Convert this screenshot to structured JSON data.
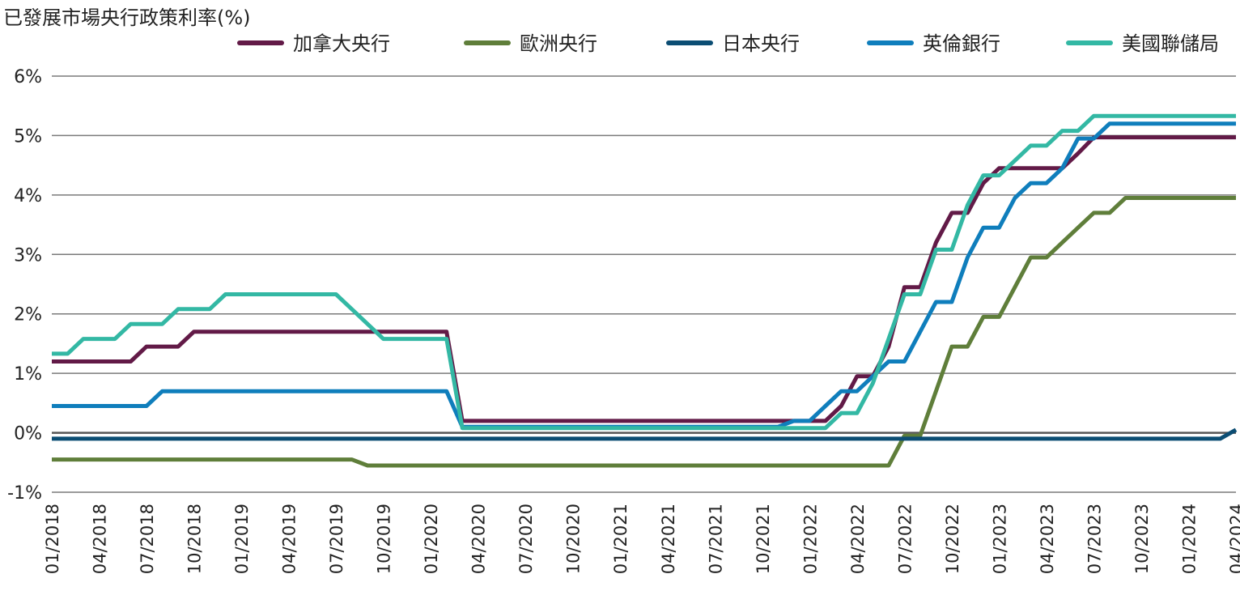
{
  "chart_data": {
    "type": "line",
    "title": "已發展市場央行政策利率(%)",
    "xlabel": "",
    "ylabel": "",
    "ylim": [
      -1,
      6
    ],
    "yticks": [
      -1,
      0,
      1,
      2,
      3,
      4,
      5,
      6
    ],
    "ytick_labels": [
      "-1%",
      "0%",
      "1%",
      "2%",
      "3%",
      "4%",
      "5%",
      "6%"
    ],
    "xlim": [
      "2018-01",
      "2024-04"
    ],
    "x_tick_labels": [
      "01/2018",
      "04/2018",
      "07/2018",
      "10/2018",
      "01/2019",
      "04/2019",
      "07/2019",
      "10/2019",
      "01/2020",
      "04/2020",
      "07/2020",
      "10/2020",
      "01/2021",
      "04/2021",
      "07/2021",
      "10/2021",
      "01/2022",
      "04/2022",
      "07/2022",
      "10/2022",
      "01/2023",
      "04/2023",
      "07/2023",
      "10/2023",
      "01/2024",
      "04/2024"
    ],
    "grid": true,
    "legend_position": "top",
    "series": [
      {
        "name": "加拿大央行",
        "color": "#621a47",
        "points": [
          [
            "2018-01",
            1.2
          ],
          [
            "2018-06",
            1.2
          ],
          [
            "2018-07",
            1.45
          ],
          [
            "2018-09",
            1.45
          ],
          [
            "2018-10",
            1.7
          ],
          [
            "2020-02",
            1.7
          ],
          [
            "2020-03",
            0.2
          ],
          [
            "2022-02",
            0.2
          ],
          [
            "2022-03",
            0.45
          ],
          [
            "2022-04",
            0.95
          ],
          [
            "2022-05",
            0.95
          ],
          [
            "2022-06",
            1.45
          ],
          [
            "2022-07",
            2.45
          ],
          [
            "2022-08",
            2.45
          ],
          [
            "2022-09",
            3.2
          ],
          [
            "2022-10",
            3.7
          ],
          [
            "2022-11",
            3.7
          ],
          [
            "2022-12",
            4.2
          ],
          [
            "2023-01",
            4.45
          ],
          [
            "2023-05",
            4.45
          ],
          [
            "2023-06",
            4.7
          ],
          [
            "2023-07",
            4.97
          ],
          [
            "2024-04",
            4.97
          ]
        ]
      },
      {
        "name": "歐洲央行",
        "color": "#5f7e3a",
        "points": [
          [
            "2018-01",
            -0.45
          ],
          [
            "2019-08",
            -0.45
          ],
          [
            "2019-09",
            -0.55
          ],
          [
            "2022-06",
            -0.55
          ],
          [
            "2022-07",
            -0.05
          ],
          [
            "2022-08",
            -0.05
          ],
          [
            "2022-09",
            0.7
          ],
          [
            "2022-10",
            1.45
          ],
          [
            "2022-11",
            1.45
          ],
          [
            "2022-12",
            1.95
          ],
          [
            "2023-01",
            1.95
          ],
          [
            "2023-02",
            2.45
          ],
          [
            "2023-03",
            2.95
          ],
          [
            "2023-04",
            2.95
          ],
          [
            "2023-05",
            3.2
          ],
          [
            "2023-06",
            3.45
          ],
          [
            "2023-07",
            3.7
          ],
          [
            "2023-08",
            3.7
          ],
          [
            "2023-09",
            3.95
          ],
          [
            "2024-04",
            3.95
          ]
        ]
      },
      {
        "name": "日本央行",
        "color": "#0b4d73",
        "points": [
          [
            "2018-01",
            -0.1
          ],
          [
            "2024-03",
            -0.1
          ],
          [
            "2024-04",
            0.05
          ]
        ]
      },
      {
        "name": "英倫銀行",
        "color": "#0f7ebc",
        "points": [
          [
            "2018-01",
            0.45
          ],
          [
            "2018-07",
            0.45
          ],
          [
            "2018-08",
            0.7
          ],
          [
            "2020-02",
            0.7
          ],
          [
            "2020-03",
            0.1
          ],
          [
            "2021-11",
            0.1
          ],
          [
            "2021-12",
            0.2
          ],
          [
            "2022-01",
            0.2
          ],
          [
            "2022-02",
            0.45
          ],
          [
            "2022-03",
            0.7
          ],
          [
            "2022-04",
            0.7
          ],
          [
            "2022-05",
            0.95
          ],
          [
            "2022-06",
            1.2
          ],
          [
            "2022-07",
            1.2
          ],
          [
            "2022-08",
            1.7
          ],
          [
            "2022-09",
            2.2
          ],
          [
            "2022-10",
            2.2
          ],
          [
            "2022-11",
            2.95
          ],
          [
            "2022-12",
            3.45
          ],
          [
            "2023-01",
            3.45
          ],
          [
            "2023-02",
            3.95
          ],
          [
            "2023-03",
            4.2
          ],
          [
            "2023-04",
            4.2
          ],
          [
            "2023-05",
            4.45
          ],
          [
            "2023-06",
            4.95
          ],
          [
            "2023-07",
            4.95
          ],
          [
            "2023-08",
            5.2
          ],
          [
            "2024-04",
            5.2
          ]
        ]
      },
      {
        "name": "美國聯儲局",
        "color": "#33b8a4",
        "points": [
          [
            "2018-01",
            1.33
          ],
          [
            "2018-02",
            1.33
          ],
          [
            "2018-03",
            1.58
          ],
          [
            "2018-05",
            1.58
          ],
          [
            "2018-06",
            1.83
          ],
          [
            "2018-08",
            1.83
          ],
          [
            "2018-09",
            2.08
          ],
          [
            "2018-11",
            2.08
          ],
          [
            "2018-12",
            2.33
          ],
          [
            "2019-07",
            2.33
          ],
          [
            "2019-08",
            2.08
          ],
          [
            "2019-09",
            1.83
          ],
          [
            "2019-10",
            1.58
          ],
          [
            "2020-02",
            1.58
          ],
          [
            "2020-03",
            0.08
          ],
          [
            "2022-02",
            0.08
          ],
          [
            "2022-03",
            0.33
          ],
          [
            "2022-04",
            0.33
          ],
          [
            "2022-05",
            0.83
          ],
          [
            "2022-06",
            1.58
          ],
          [
            "2022-07",
            2.33
          ],
          [
            "2022-08",
            2.33
          ],
          [
            "2022-09",
            3.08
          ],
          [
            "2022-10",
            3.08
          ],
          [
            "2022-11",
            3.83
          ],
          [
            "2022-12",
            4.33
          ],
          [
            "2023-01",
            4.33
          ],
          [
            "2023-02",
            4.58
          ],
          [
            "2023-03",
            4.83
          ],
          [
            "2023-04",
            4.83
          ],
          [
            "2023-05",
            5.08
          ],
          [
            "2023-06",
            5.08
          ],
          [
            "2023-07",
            5.33
          ],
          [
            "2024-04",
            5.33
          ]
        ]
      }
    ]
  }
}
